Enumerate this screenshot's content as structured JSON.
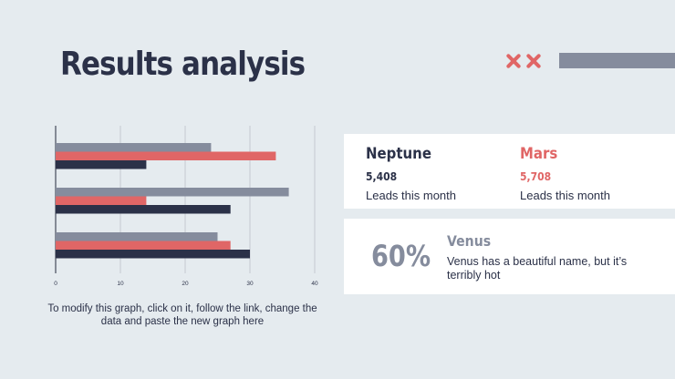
{
  "title": "Results analysis",
  "colors": {
    "gray": "#858c9d",
    "red": "#e06666",
    "navy": "#2b3148",
    "background": "#e5ebef"
  },
  "chart_data": {
    "type": "bar",
    "orientation": "horizontal",
    "categories": [
      "",
      "",
      ""
    ],
    "series": [
      {
        "color": "#858c9d",
        "values": [
          24,
          36,
          25
        ]
      },
      {
        "color": "#e06666",
        "values": [
          34,
          14,
          27
        ]
      },
      {
        "color": "#2b3148",
        "values": [
          14,
          27,
          30
        ]
      }
    ],
    "xlim": [
      0,
      40
    ],
    "xticks": [
      0,
      10,
      20,
      30,
      40
    ],
    "grid": true,
    "legend": "none"
  },
  "caption": "To modify this graph, click on it, follow the link, change the data and paste the new graph here",
  "stats": [
    {
      "name": "Neptune",
      "value": "5,408",
      "desc": "Leads this month",
      "color": "#2b3148"
    },
    {
      "name": "Mars",
      "value": "5,708",
      "desc": "Leads this month",
      "color": "#e06666"
    }
  ],
  "venus": {
    "percent": "60%",
    "name": "Venus",
    "desc": "Venus has a beautiful name, but it’s terribly hot"
  }
}
